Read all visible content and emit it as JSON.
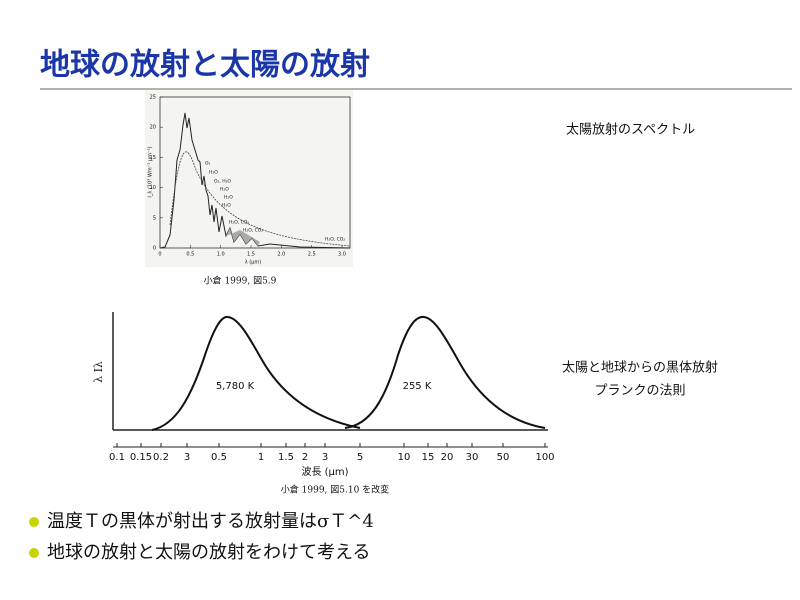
{
  "title": "地球の放射と太陽の放射",
  "solar_figure": {
    "caption": "太陽放射のスペクトル",
    "source": "小倉 1999, 図5.9",
    "y_label": "I_λ (10³ Wm⁻² μm⁻¹)",
    "x_label": "λ (μm)",
    "y_ticks": [
      "0",
      "5",
      "10",
      "15",
      "20",
      "25"
    ],
    "x_ticks": [
      "0",
      "0.5",
      "1.0",
      "1.5",
      "2.0",
      "2.5",
      "3.0"
    ],
    "absorbers": [
      "O₃",
      "H₂O",
      "O₂, H₂O",
      "H₂O",
      "H₂O",
      "H₂O",
      "H₂O, CO₂",
      "H₂O, CO₂",
      "H₂O, CO₂"
    ]
  },
  "blackbody_figure": {
    "caption_lines": [
      "太陽と地球からの黒体放射",
      "プランクの法則"
    ],
    "y_label": "λ Iλ",
    "peak_labels": [
      "5,780 K",
      "255 K"
    ],
    "x_ticks": [
      "0.1",
      "0.15",
      "0.2",
      "3",
      "0.5",
      "1",
      "1.5",
      "2",
      "3",
      "5",
      "10",
      "15",
      "20",
      "30",
      "50",
      "100"
    ],
    "x_label": "波長 (μm)",
    "source": "小倉 1999, 図5.10 を改変"
  },
  "bullets": [
    "温度Ｔの黒体が射出する放射量はσＴ^4",
    "地球の放射と太陽の放射をわけて考える"
  ]
}
